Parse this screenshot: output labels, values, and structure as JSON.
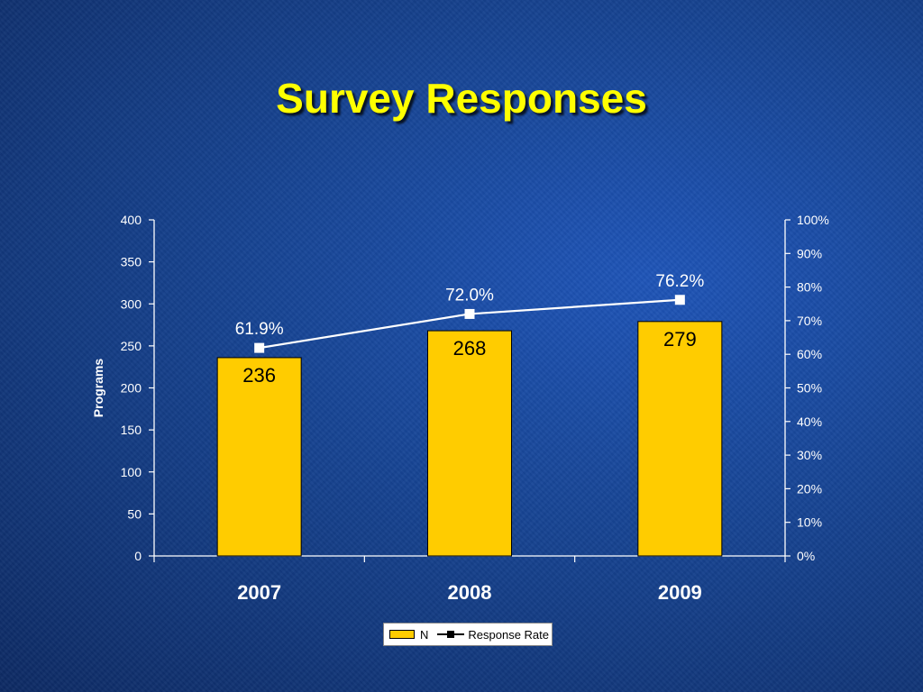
{
  "slide": {
    "title": "Survey Responses"
  },
  "chart_data": {
    "type": "bar",
    "categories": [
      "2007",
      "2008",
      "2009"
    ],
    "series": [
      {
        "name": "N",
        "type": "bar",
        "axis": "left",
        "values": [
          236,
          268,
          279
        ],
        "labels": [
          "236",
          "268",
          "279"
        ]
      },
      {
        "name": "Response Rate",
        "type": "line",
        "axis": "right",
        "values": [
          61.9,
          72.0,
          76.2
        ],
        "labels": [
          "61.9%",
          "72.0%",
          "76.2%"
        ]
      }
    ],
    "ylabel": "Programs",
    "ylim": [
      0,
      400
    ],
    "yticks": [
      "0",
      "50",
      "100",
      "150",
      "200",
      "250",
      "300",
      "350",
      "400"
    ],
    "y2lim": [
      0,
      100
    ],
    "y2ticks": [
      "0%",
      "10%",
      "20%",
      "30%",
      "40%",
      "50%",
      "60%",
      "70%",
      "80%",
      "90%",
      "100%"
    ],
    "legend": {
      "position": "bottom",
      "entries": [
        "N",
        "Response Rate"
      ]
    },
    "grid": false,
    "colors": {
      "bar": "#ffcc00",
      "line": "#ffffff",
      "title": "#ffff00"
    }
  }
}
